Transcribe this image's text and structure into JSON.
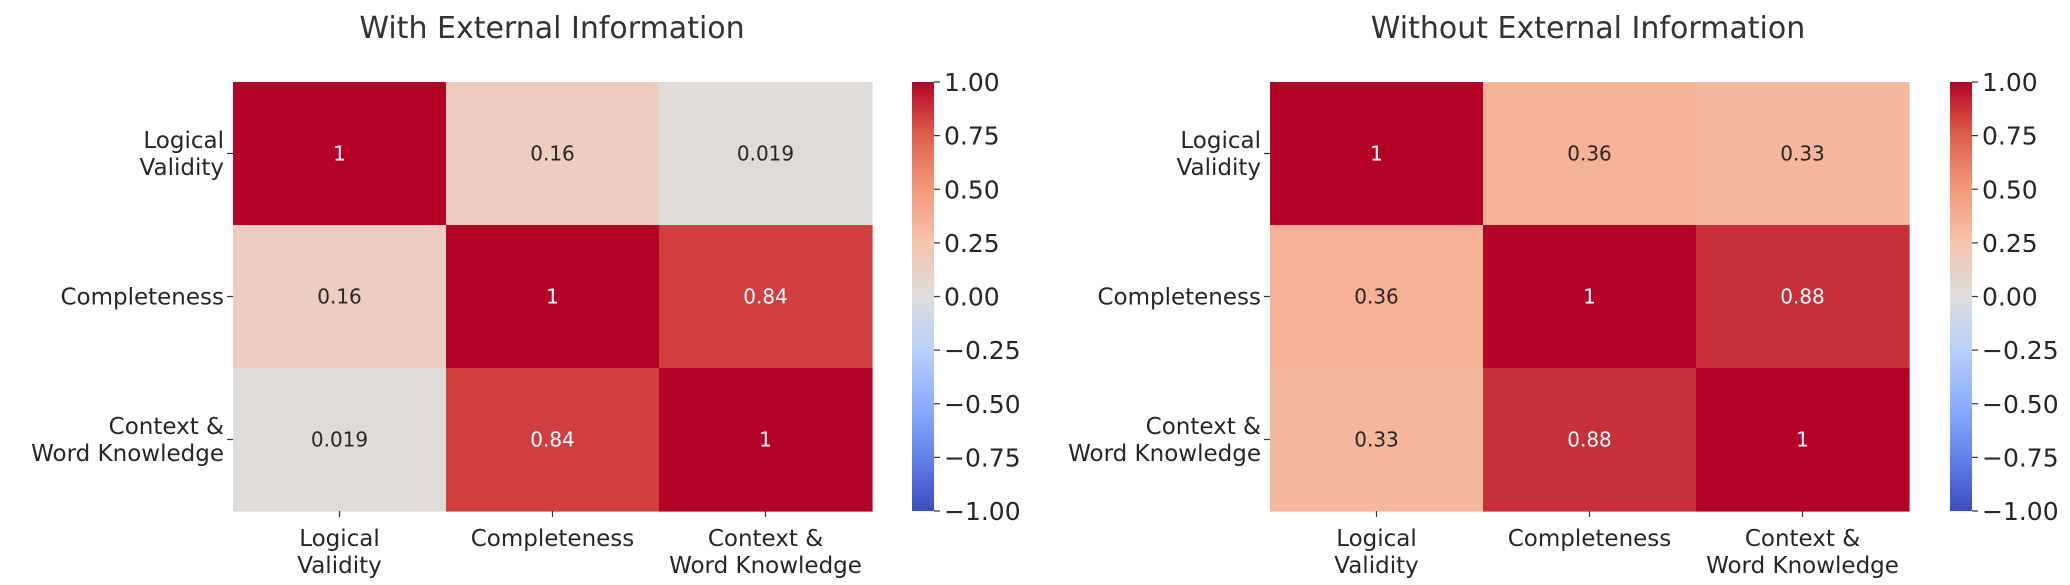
{
  "chart_data": [
    {
      "type": "heatmap",
      "title": "With External Information",
      "x_labels": [
        [
          "Logical",
          "Validity"
        ],
        [
          "Completeness"
        ],
        [
          "Context &",
          "Word Knowledge"
        ]
      ],
      "y_labels": [
        [
          "Logical",
          "Validity"
        ],
        [
          "Completeness"
        ],
        [
          "Context &",
          "Word Knowledge"
        ]
      ],
      "values": [
        [
          1,
          0.16,
          0.019
        ],
        [
          0.16,
          1,
          0.84
        ],
        [
          0.019,
          0.84,
          1
        ]
      ],
      "annotations": [
        [
          "1",
          "0.16",
          "0.019"
        ],
        [
          "0.16",
          "1",
          "0.84"
        ],
        [
          "0.019",
          "0.84",
          "1"
        ]
      ],
      "colormap": "coolwarm",
      "vmin": -1.0,
      "vmax": 1.0,
      "colorbar_ticks": [
        1.0,
        0.75,
        0.5,
        0.25,
        0.0,
        -0.25,
        -0.5,
        -0.75,
        -1.0
      ],
      "colorbar_tick_labels": [
        "1.00",
        "0.75",
        "0.50",
        "0.25",
        "0.00",
        "−0.25",
        "−0.50",
        "−0.75",
        "−1.00"
      ]
    },
    {
      "type": "heatmap",
      "title": "Without External Information",
      "x_labels": [
        [
          "Logical",
          "Validity"
        ],
        [
          "Completeness"
        ],
        [
          "Context &",
          "Word Knowledge"
        ]
      ],
      "y_labels": [
        [
          "Logical",
          "Validity"
        ],
        [
          "Completeness"
        ],
        [
          "Context &",
          "Word Knowledge"
        ]
      ],
      "values": [
        [
          1,
          0.36,
          0.33
        ],
        [
          0.36,
          1,
          0.88
        ],
        [
          0.33,
          0.88,
          1
        ]
      ],
      "annotations": [
        [
          "1",
          "0.36",
          "0.33"
        ],
        [
          "0.36",
          "1",
          "0.88"
        ],
        [
          "0.33",
          "0.88",
          "1"
        ]
      ],
      "colormap": "coolwarm",
      "vmin": -1.0,
      "vmax": 1.0,
      "colorbar_ticks": [
        1.0,
        0.75,
        0.5,
        0.25,
        0.0,
        -0.25,
        -0.5,
        -0.75,
        -1.0
      ],
      "colorbar_tick_labels": [
        "1.00",
        "0.75",
        "0.50",
        "0.25",
        "0.00",
        "−0.25",
        "−0.50",
        "−0.75",
        "−1.00"
      ]
    }
  ]
}
